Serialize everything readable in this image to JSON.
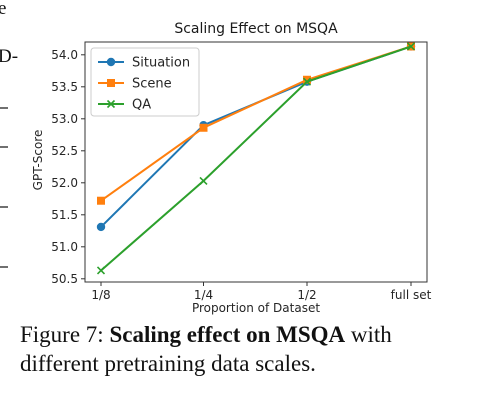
{
  "chart_data": {
    "type": "line",
    "title": "Scaling Effect on MSQA",
    "xlabel": "Proportion of Dataset",
    "ylabel": "GPT-Score",
    "categories": [
      "1/8",
      "1/4",
      "1/2",
      "full set"
    ],
    "ylim": [
      50.45,
      54.2
    ],
    "yticks": [
      "50.5",
      "51.0",
      "51.5",
      "52.0",
      "52.5",
      "53.0",
      "53.5",
      "54.0"
    ],
    "grid": false,
    "legend_position": "top-left",
    "series": [
      {
        "name": "Situation",
        "values": [
          51.31,
          52.9,
          53.58,
          54.13
        ],
        "color": "#1f77b4",
        "marker": "circle"
      },
      {
        "name": "Scene",
        "values": [
          51.72,
          52.86,
          53.61,
          54.13
        ],
        "color": "#ff7f0e",
        "marker": "square"
      },
      {
        "name": "QA",
        "values": [
          50.63,
          52.03,
          53.58,
          54.13
        ],
        "color": "#2ca02c",
        "marker": "x"
      }
    ]
  },
  "caption": {
    "label": "Figure 7: ",
    "bold": "Scaling effect on MSQA",
    "rest": " with different pretraining data scales."
  },
  "edge_fragments": [
    "e",
    "D-"
  ]
}
